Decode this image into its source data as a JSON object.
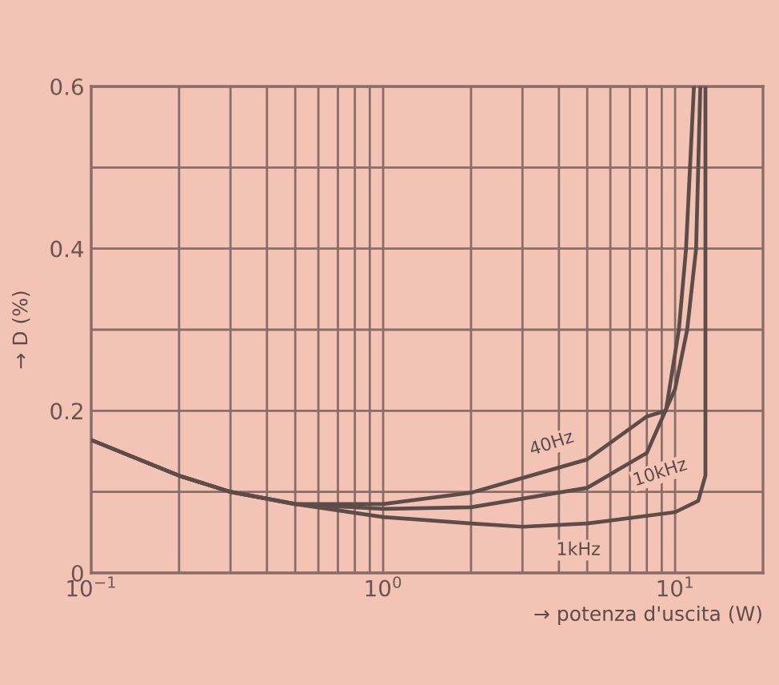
{
  "chart_data": {
    "type": "line",
    "xlabel": "→ potenza d'uscita (W)",
    "ylabel": "→ D (%)",
    "log": "x",
    "grid": true,
    "legend": false,
    "marker": "none",
    "line_style": "solid",
    "xlim": [
      0.1,
      20
    ],
    "ylim": [
      0,
      0.6
    ],
    "xticks": [
      {
        "value": 0.1,
        "label": "10$^{−1}$"
      },
      {
        "value": 0.2,
        "label": null
      },
      {
        "value": 0.3,
        "label": null
      },
      {
        "value": 0.4,
        "label": null
      },
      {
        "value": 0.5,
        "label": null
      },
      {
        "value": 0.6,
        "label": null
      },
      {
        "value": 0.7,
        "label": null
      },
      {
        "value": 0.8,
        "label": null
      },
      {
        "value": 0.9,
        "label": null
      },
      {
        "value": 1,
        "label": "10$^{0}$"
      },
      {
        "value": 2,
        "label": null
      },
      {
        "value": 3,
        "label": null
      },
      {
        "value": 4,
        "label": null
      },
      {
        "value": 5,
        "label": null
      },
      {
        "value": 6,
        "label": null
      },
      {
        "value": 7,
        "label": null
      },
      {
        "value": 8,
        "label": null
      },
      {
        "value": 9,
        "label": null
      },
      {
        "value": 10,
        "label": "10$^{1}$"
      }
    ],
    "yticks": [
      0,
      {
        "value": 0.1,
        "label": null
      },
      0.2,
      {
        "value": 0.3,
        "label": null
      },
      0.4,
      {
        "value": 0.5,
        "label": null
      },
      0.6
    ],
    "series": [
      {
        "name": "40Hz",
        "color": "#5e4c48",
        "x": [
          0.1,
          0.2,
          0.3,
          0.5,
          1,
          2,
          5,
          8,
          9.3,
          10.3,
          10.9,
          11.6
        ],
        "values": [
          0.164,
          0.12,
          0.1,
          0.085,
          0.085,
          0.099,
          0.14,
          0.193,
          0.2,
          0.3,
          0.4,
          0.6
        ]
      },
      {
        "name": "10kHz",
        "color": "#5e4c48",
        "x": [
          0.1,
          0.2,
          0.3,
          0.5,
          1,
          2,
          5,
          8,
          10,
          11.0,
          11.8,
          12.2
        ],
        "values": [
          0.164,
          0.12,
          0.1,
          0.085,
          0.079,
          0.081,
          0.105,
          0.148,
          0.227,
          0.3,
          0.4,
          0.6
        ]
      },
      {
        "name": "1kHz",
        "color": "#5e4c48",
        "x": [
          0.1,
          0.2,
          0.3,
          0.5,
          1,
          2,
          3,
          5,
          10,
          12,
          12.7,
          12.7
        ],
        "values": [
          0.164,
          0.12,
          0.1,
          0.085,
          0.069,
          0.061,
          0.057,
          0.061,
          0.075,
          0.089,
          0.12,
          0.6
        ]
      }
    ]
  }
}
